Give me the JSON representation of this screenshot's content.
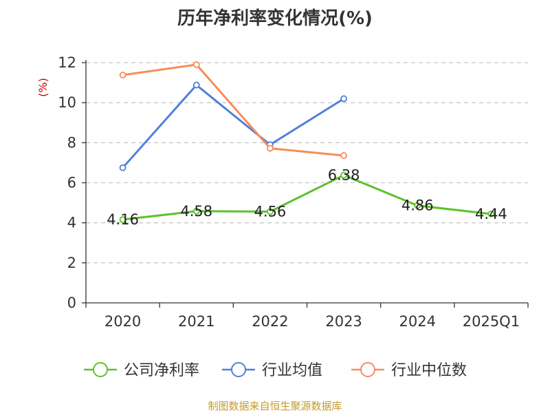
{
  "chart_data": {
    "type": "line",
    "title": "历年净利率变化情况(%)",
    "unit": "(%)",
    "categories": [
      "2020",
      "2021",
      "2022",
      "2023",
      "2024",
      "2025Q1"
    ],
    "ylim": [
      0,
      12
    ],
    "yticks": [
      0,
      2,
      4,
      6,
      8,
      10,
      12
    ],
    "grid": true,
    "legend_position": "bottom",
    "series": [
      {
        "name": "公司净利率",
        "color": "#5bc22b",
        "values": [
          4.16,
          4.58,
          4.56,
          6.38,
          4.86,
          4.44
        ],
        "labels": [
          "4.16",
          "4.58",
          "4.56",
          "6.38",
          "4.86",
          "4.44"
        ]
      },
      {
        "name": "行业均值",
        "color": "#4f7fd9",
        "values": [
          6.75,
          10.88,
          7.9,
          10.2,
          null,
          null
        ]
      },
      {
        "name": "行业中位数",
        "color": "#f78c5a",
        "values": [
          11.38,
          11.9,
          7.72,
          7.36,
          null,
          null
        ]
      }
    ]
  },
  "source": "制图数据来自恒生聚源数据库"
}
